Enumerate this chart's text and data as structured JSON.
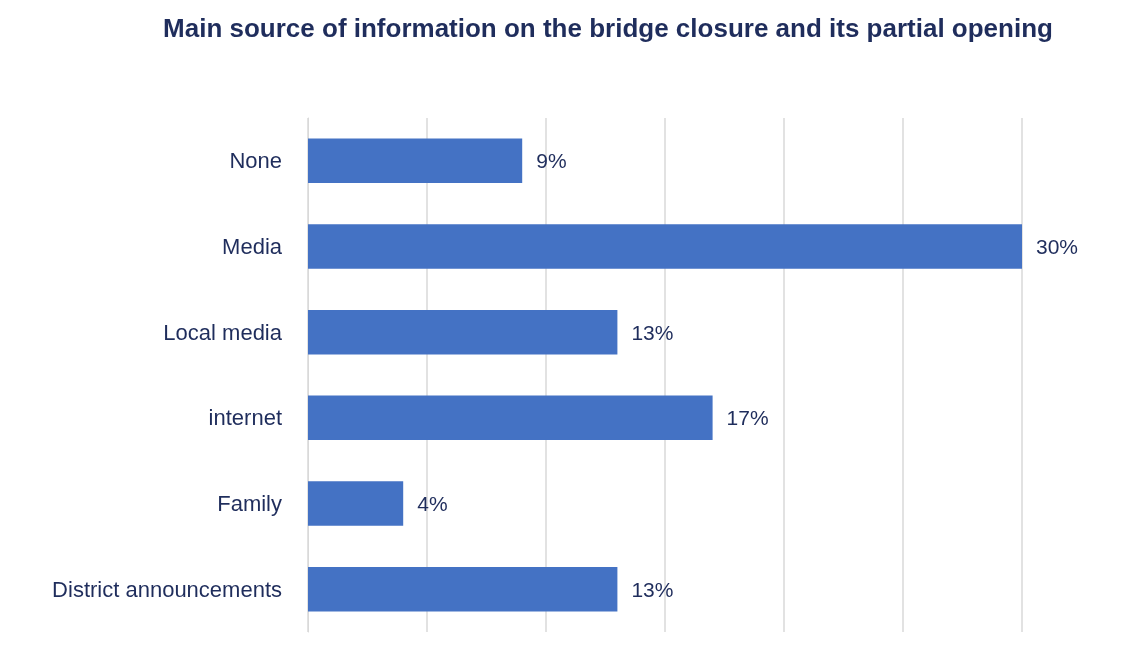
{
  "chart_data": {
    "type": "bar",
    "orientation": "horizontal",
    "title": "Main source of information on the bridge closure and its partial opening",
    "categories": [
      "None",
      "Media",
      "Local media",
      "internet",
      "Family",
      "District announcements"
    ],
    "values": [
      9,
      30,
      13,
      17,
      4,
      13
    ],
    "value_labels": [
      "9%",
      "30%",
      "13%",
      "17%",
      "4%",
      "13%"
    ],
    "color": "#4472c4",
    "xlim": [
      0,
      30
    ],
    "xticks": [
      {
        "value": 0,
        "label": null
      },
      {
        "value": 5,
        "label": null
      },
      {
        "value": 10,
        "label": null
      },
      {
        "value": 15,
        "label": null
      },
      {
        "value": 20,
        "label": null
      },
      {
        "value": 25,
        "label": null
      },
      {
        "value": 30,
        "label": null
      }
    ],
    "grid": "x",
    "tick_labels": "y"
  }
}
